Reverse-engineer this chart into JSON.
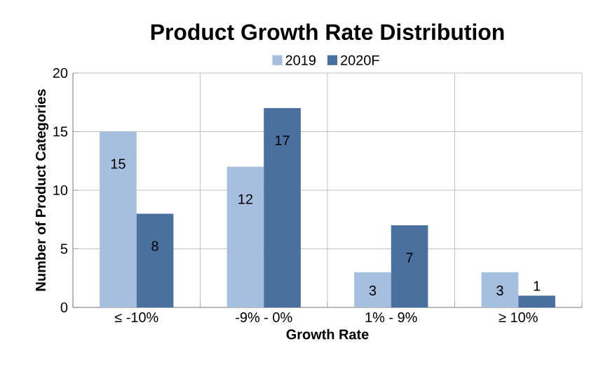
{
  "chart_data": {
    "type": "bar",
    "title": "Product Growth Rate Distribution",
    "xlabel": "Growth Rate",
    "ylabel": "Number of Product Categories",
    "categories": [
      "≤ -10%",
      "-9% - 0%",
      "1% - 9%",
      "≥ 10%"
    ],
    "series": [
      {
        "name": "2019",
        "color": "#a7bfdf",
        "values": [
          15,
          12,
          3,
          3
        ]
      },
      {
        "name": "2020F",
        "color": "#4a70a0",
        "values": [
          8,
          17,
          7,
          1
        ]
      }
    ],
    "ylim": [
      0,
      20
    ],
    "yticks": [
      0,
      5,
      10,
      15,
      20
    ],
    "grid": true,
    "legend": "top",
    "data_labels": true
  }
}
